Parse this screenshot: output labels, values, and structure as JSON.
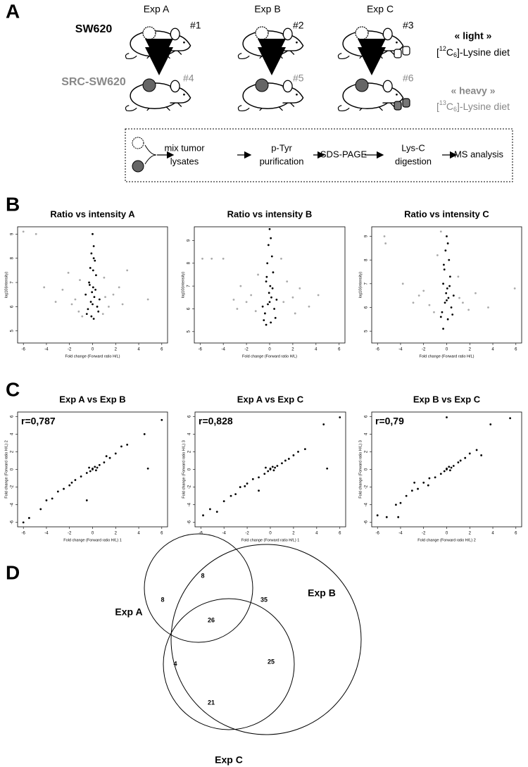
{
  "panel_labels": [
    "A",
    "B",
    "C",
    "D"
  ],
  "panel_a": {
    "experiments": [
      "Exp A",
      "Exp B",
      "Exp C"
    ],
    "cell_lines": [
      "SW620",
      "SRC-SW620"
    ],
    "mouse_ids": [
      "#1",
      "#2",
      "#3",
      "#4",
      "#5",
      "#6"
    ],
    "light": {
      "name": "« light »",
      "diet": [
        "[",
        "12",
        "C",
        "6",
        "]-Lysine diet"
      ]
    },
    "heavy": {
      "name": "« heavy »",
      "diet": [
        "[",
        "13",
        "C",
        "6",
        "]-Lysine diet"
      ]
    },
    "workflow": [
      [
        "mix tumor",
        "lysates"
      ],
      [
        "p-Tyr",
        "purification"
      ],
      [
        "SDS-PAGE"
      ],
      [
        "Lys-C",
        "digestion"
      ],
      [
        "MS analysis"
      ]
    ]
  },
  "chart_data": [
    {
      "type": "scatter",
      "title": "Ratio vs intensity A",
      "xlabel": "Fold change (Forward ratio H/L)",
      "ylabel": "log10(intensity)",
      "xlim": [
        -6.5,
        6.5
      ],
      "ylim": [
        4.5,
        9.3
      ],
      "xticks": [
        -6,
        -4,
        -2,
        0,
        2,
        4,
        6
      ],
      "yticks": [
        5,
        6,
        7,
        8,
        9
      ],
      "series": [
        {
          "color": "#aaaaaa",
          "x": [
            -6,
            -4.9,
            -2.1,
            -1.8,
            -1.5,
            -1.2,
            -2.6,
            -3.2,
            1.1,
            1.4,
            1.8,
            2.3,
            3.0,
            4.8,
            -0.9,
            1.0,
            -1.1,
            2.6,
            -4.2,
            0.9
          ],
          "values": [
            9.1,
            9.0,
            7.4,
            6.1,
            6.3,
            5.8,
            6.7,
            6.2,
            6.4,
            6.0,
            6.5,
            6.8,
            7.5,
            6.3,
            5.6,
            7.2,
            7.1,
            6.1,
            6.8,
            5.7
          ]
        },
        {
          "color": "#000000",
          "x": [
            0,
            0.1,
            -0.1,
            0.2,
            -0.2,
            0.3,
            -0.3,
            0.05,
            -0.05,
            0.15,
            -0.15,
            0.4,
            -0.4,
            0.5,
            -0.5,
            0.1,
            -0.1,
            0,
            0.25,
            -0.25,
            0.6,
            -0.6,
            0.05,
            0.1
          ],
          "values": [
            9.0,
            8.5,
            8.2,
            7.9,
            7.6,
            7.3,
            7.0,
            6.8,
            6.6,
            6.4,
            6.2,
            6.0,
            5.9,
            5.8,
            5.7,
            5.5,
            5.6,
            6.1,
            6.7,
            6.9,
            6.3,
            6.5,
            7.5,
            8.0
          ]
        }
      ]
    },
    {
      "type": "scatter",
      "title": "Ratio vs intensity B",
      "xlabel": "Fold change (Forward ratio H/L)",
      "ylabel": "log10(intensity)",
      "xlim": [
        -6.5,
        6.5
      ],
      "ylim": [
        4.5,
        9.6
      ],
      "xticks": [
        -6,
        -4,
        -2,
        0,
        2,
        4,
        6
      ],
      "yticks": [
        5,
        6,
        7,
        8,
        9
      ],
      "series": [
        {
          "color": "#aaaaaa",
          "x": [
            -5.8,
            -5.0,
            -4.0,
            -2.5,
            -2.0,
            -1.6,
            -1.2,
            1.2,
            1.5,
            2.0,
            2.6,
            3.4,
            4.2,
            -3.1,
            1.0,
            -1.0,
            2.2,
            -2.8
          ],
          "values": [
            8.2,
            8.2,
            8.2,
            7.0,
            6.3,
            6.6,
            5.9,
            6.3,
            7.2,
            6.5,
            6.9,
            6.1,
            6.6,
            6.4,
            8.2,
            7.5,
            5.8,
            6.0
          ]
        },
        {
          "color": "#000000",
          "x": [
            0,
            0.1,
            -0.1,
            0.2,
            -0.2,
            0.3,
            -0.3,
            0.05,
            -0.05,
            0.15,
            -0.15,
            0.4,
            -0.4,
            0.5,
            -0.5,
            -0.3,
            0.1,
            0,
            0.25,
            -0.25,
            0.6,
            -0.6
          ],
          "values": [
            9.5,
            9.1,
            8.8,
            8.3,
            8.0,
            7.6,
            7.2,
            7.0,
            6.7,
            6.5,
            6.2,
            6.0,
            5.8,
            5.6,
            5.5,
            5.3,
            5.4,
            6.3,
            6.9,
            7.4,
            6.4,
            6.1
          ]
        }
      ]
    },
    {
      "type": "scatter",
      "title": "Ratio vs intensity C",
      "xlabel": "Fold change (Forward ratio H/L)",
      "ylabel": "log10(intensity)",
      "xlim": [
        -6.5,
        6.5
      ],
      "ylim": [
        4.5,
        9.4
      ],
      "xticks": [
        -6,
        -4,
        -2,
        0,
        2,
        4,
        6
      ],
      "yticks": [
        5,
        6,
        7,
        8,
        9
      ],
      "series": [
        {
          "color": "#aaaaaa",
          "x": [
            -5.4,
            -5.3,
            -3.8,
            -2.4,
            -2.0,
            -1.5,
            -1.1,
            1.1,
            1.4,
            1.9,
            2.5,
            3.6,
            5.9,
            -0.5,
            -0.8,
            1.0,
            -2.9
          ],
          "values": [
            9.0,
            8.7,
            7.0,
            6.5,
            6.7,
            6.1,
            5.8,
            6.4,
            6.2,
            5.9,
            6.6,
            6.0,
            6.8,
            9.2,
            8.2,
            7.3,
            6.2
          ]
        },
        {
          "color": "#000000",
          "x": [
            0,
            0.1,
            -0.1,
            0.2,
            -0.2,
            0.3,
            -0.3,
            0.05,
            -0.05,
            0.15,
            -0.15,
            0.4,
            -0.4,
            0.5,
            -0.5,
            -0.3,
            0.1,
            0,
            0.25,
            -0.25,
            0.6
          ],
          "values": [
            9.0,
            8.7,
            8.4,
            8.0,
            7.6,
            7.3,
            7.0,
            6.8,
            6.6,
            6.4,
            6.2,
            6.0,
            5.8,
            5.7,
            5.6,
            5.1,
            5.5,
            6.3,
            6.9,
            7.8,
            6.5
          ]
        }
      ]
    },
    {
      "type": "scatter",
      "title": "Exp A vs Exp B",
      "annotation": "r=0,787",
      "xlabel": "Fold change (Forward ratio H/L) 1",
      "ylabel": "Fold change (Forward ratio H/L) 2",
      "xlim": [
        -6.5,
        6.5
      ],
      "ylim": [
        -6.5,
        6.5
      ],
      "xticks": [
        -6,
        -4,
        -2,
        0,
        2,
        4,
        6
      ],
      "yticks": [
        -6,
        -4,
        -2,
        0,
        2,
        4,
        6
      ],
      "series": [
        {
          "color": "#000000",
          "x": [
            -6,
            -5.5,
            -4.5,
            -4,
            -3.5,
            -3,
            -2.5,
            -2,
            -1.5,
            -1,
            -0.5,
            0,
            0.2,
            -0.2,
            0.4,
            0.6,
            1,
            1.5,
            2,
            2.5,
            3,
            4.5,
            6,
            4.8,
            -0.5,
            0.3,
            -1.8,
            1.2,
            0,
            -0.3
          ],
          "values": [
            -6,
            -5.5,
            -4.5,
            -3.5,
            -3.3,
            -2.5,
            -2.2,
            -1.8,
            -1.2,
            -0.8,
            -0.4,
            0,
            0.3,
            -0.2,
            0.2,
            0.5,
            0.8,
            1.3,
            1.8,
            2.6,
            2.8,
            4,
            5.6,
            0.1,
            -3.5,
            -0.1,
            -1.5,
            1.5,
            0.1,
            0.2
          ]
        }
      ]
    },
    {
      "type": "scatter",
      "title": "Exp A vs Exp C",
      "annotation": "r=0,828",
      "xlabel": "Fold change (Forward ratio H/L) 1",
      "ylabel": "Fold change (Forward ratio H/L) 3",
      "xlim": [
        -6.5,
        6.5
      ],
      "ylim": [
        -6.5,
        6.5
      ],
      "xticks": [
        -6,
        -4,
        -2,
        0,
        2,
        4,
        6
      ],
      "yticks": [
        -6,
        -4,
        -2,
        0,
        2,
        4,
        6
      ],
      "series": [
        {
          "color": "#000000",
          "x": [
            -5.8,
            -5.2,
            -4.6,
            -4,
            -3.4,
            -3,
            -2.6,
            -2,
            -1.5,
            -1,
            -0.5,
            0,
            0.2,
            -0.2,
            0.4,
            0.6,
            1,
            1.6,
            2,
            2.4,
            3,
            4.6,
            6,
            4.9,
            -1,
            0.3,
            -2.2,
            1.3,
            0,
            -0.4
          ],
          "values": [
            -5.2,
            -4.5,
            -4.8,
            -3.6,
            -3.0,
            -2.8,
            -2.0,
            -1.6,
            -1.1,
            -0.9,
            -0.5,
            0,
            0.3,
            -0.2,
            0.2,
            0.4,
            0.7,
            1.2,
            1.6,
            2.0,
            2.3,
            5.1,
            5.9,
            0.1,
            -2.4,
            -0.1,
            -1.9,
            1.0,
            0.1,
            0.2
          ]
        }
      ]
    },
    {
      "type": "scatter",
      "title": "Exp B vs Exp C",
      "annotation": "r=0,79",
      "xlabel": "Fold change (Forward ratio H/L) 2",
      "ylabel": "Fold change (Forward ratio H/L) 3",
      "xlim": [
        -6.5,
        6.5
      ],
      "ylim": [
        -6.5,
        6.5
      ],
      "xticks": [
        -6,
        -4,
        -2,
        0,
        2,
        4,
        6
      ],
      "yticks": [
        -6,
        -4,
        -2,
        0,
        2,
        4,
        6
      ],
      "series": [
        {
          "color": "#000000",
          "x": [
            -6,
            -5.2,
            -4.4,
            -4,
            -3.5,
            -3,
            -2.5,
            -2,
            -1.5,
            -1,
            -0.5,
            0,
            0.2,
            -0.2,
            0.4,
            0.6,
            1,
            1.6,
            2,
            2.6,
            3,
            3.8,
            5.5,
            0,
            -2.8,
            0.3,
            -1.6,
            1.2,
            0,
            -4.2
          ],
          "values": [
            -5.2,
            -5.4,
            -4.0,
            -3.8,
            -3.0,
            -2.4,
            -2.2,
            -1.5,
            -1.0,
            -0.9,
            -0.5,
            0,
            0.3,
            -0.2,
            0.2,
            0.4,
            0.8,
            1.3,
            1.8,
            2.2,
            1.6,
            5.1,
            5.8,
            5.9,
            -1.5,
            -0.1,
            -1.8,
            1.0,
            0.1,
            -5.4
          ]
        }
      ]
    },
    {
      "type": "venn",
      "sets": [
        "Exp A",
        "Exp B",
        "Exp C"
      ],
      "values": [
        8,
        8,
        35,
        26,
        4,
        25,
        21
      ]
    }
  ]
}
